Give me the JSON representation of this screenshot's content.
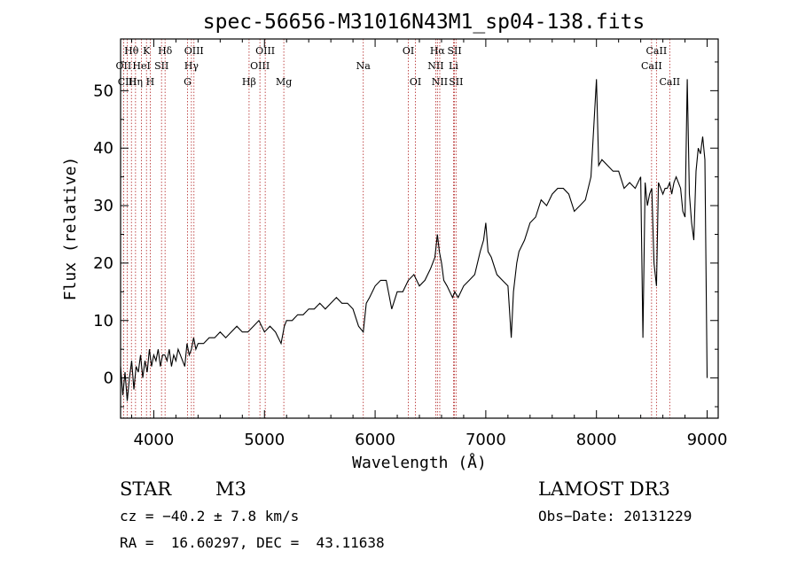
{
  "chart_data": {
    "type": "line",
    "title": "spec-56656-M31016N43M1_sp04-138.fits",
    "xlabel": "Wavelength (Å)",
    "ylabel": "Flux (relative)",
    "xlim": [
      3700,
      9100
    ],
    "ylim": [
      -7,
      59
    ],
    "xticks": [
      4000,
      5000,
      6000,
      7000,
      8000,
      9000
    ],
    "yticks": [
      0,
      10,
      20,
      30,
      40,
      50
    ],
    "grid": false,
    "line_color": "#000000",
    "marker_color": "#b22222",
    "series": [
      {
        "values_x": [
          3700,
          3720,
          3740,
          3760,
          3780,
          3800,
          3820,
          3840,
          3860,
          3880,
          3900,
          3920,
          3940,
          3960,
          3980,
          4000,
          4020,
          4040,
          4060,
          4080,
          4100,
          4120,
          4140,
          4160,
          4180,
          4200,
          4220,
          4240,
          4260,
          4280,
          4300,
          4320,
          4340,
          4360,
          4380,
          4400,
          4450,
          4500,
          4550,
          4600,
          4650,
          4700,
          4750,
          4800,
          4850,
          4900,
          4950,
          5000,
          5050,
          5100,
          5150,
          5180,
          5200,
          5250,
          5300,
          5350,
          5400,
          5450,
          5500,
          5550,
          5600,
          5650,
          5700,
          5750,
          5800,
          5850,
          5893,
          5920,
          5950,
          6000,
          6050,
          6100,
          6150,
          6200,
          6250,
          6300,
          6350,
          6400,
          6450,
          6500,
          6540,
          6563,
          6580,
          6600,
          6620,
          6650,
          6700,
          6720,
          6750,
          6800,
          6850,
          6900,
          6950,
          6980,
          7000,
          7020,
          7050,
          7100,
          7150,
          7200,
          7230,
          7250,
          7280,
          7300,
          7350,
          7400,
          7450,
          7500,
          7550,
          7600,
          7650,
          7700,
          7750,
          7800,
          7850,
          7900,
          7950,
          8000,
          8020,
          8050,
          8100,
          8150,
          8200,
          8250,
          8300,
          8350,
          8400,
          8420,
          8440,
          8460,
          8480,
          8500,
          8520,
          8542,
          8560,
          8580,
          8600,
          8620,
          8640,
          8662,
          8680,
          8700,
          8720,
          8740,
          8760,
          8780,
          8800,
          8820,
          8840,
          8860,
          8880,
          8900,
          8920,
          8940,
          8960,
          8980,
          9000
        ],
        "values_y": [
          2,
          -3,
          1,
          -4,
          0,
          3,
          -2,
          2,
          1,
          4,
          0,
          3,
          1,
          5,
          2,
          4,
          3,
          5,
          2,
          4,
          4,
          3,
          5,
          2,
          4,
          3,
          5,
          4,
          3,
          2,
          6,
          4,
          5,
          7,
          5,
          6,
          6,
          7,
          7,
          8,
          7,
          8,
          9,
          8,
          8,
          9,
          10,
          8,
          9,
          8,
          6,
          9,
          10,
          10,
          11,
          11,
          12,
          12,
          13,
          12,
          13,
          14,
          13,
          13,
          12,
          9,
          8,
          13,
          14,
          16,
          17,
          17,
          12,
          15,
          15,
          17,
          18,
          16,
          17,
          19,
          21,
          25,
          22,
          20,
          17,
          16,
          14,
          15,
          14,
          16,
          17,
          18,
          22,
          24,
          27,
          22,
          21,
          18,
          17,
          16,
          7,
          15,
          20,
          22,
          24,
          27,
          28,
          31,
          30,
          32,
          33,
          33,
          32,
          29,
          30,
          31,
          35,
          52,
          37,
          38,
          37,
          36,
          36,
          33,
          34,
          33,
          35,
          7,
          34,
          30,
          32,
          33,
          20,
          16,
          34,
          33,
          32,
          33,
          33,
          34,
          32,
          34,
          35,
          34,
          33,
          29,
          28,
          52,
          32,
          27,
          24,
          36,
          40,
          39,
          42,
          38,
          0
        ],
        "markers": [
          {
            "type": "CaII K",
            "x": 3934
          },
          {
            "type": "CaII H",
            "x": 3968
          },
          {
            "type": "Hdelta",
            "x": 4102
          },
          {
            "type": "Hgamma",
            "x": 4340
          },
          {
            "type": "Hbeta",
            "x": 4861
          },
          {
            "type": "Halpha",
            "x": 6563
          },
          {
            "type": "CaII triplet",
            "x": 8498
          },
          {
            "type": "CaII triplet",
            "x": 8542
          },
          {
            "type": "CaII triplet",
            "x": 8662
          }
        ]
      }
    ],
    "lines": [
      {
        "label": "OII",
        "x": 3727,
        "row": 1
      },
      {
        "label": "Hθ",
        "x": 3798,
        "row": 0
      },
      {
        "label": "CIII",
        "x": 3760,
        "row": 2
      },
      {
        "label": "Hη",
        "x": 3835,
        "row": 2
      },
      {
        "label": "HeI",
        "x": 3889,
        "row": 1
      },
      {
        "label": "K",
        "x": 3934,
        "row": 0
      },
      {
        "label": "H",
        "x": 3968,
        "row": 2
      },
      {
        "label": "SII",
        "x": 4070,
        "row": 1
      },
      {
        "label": "Hδ",
        "x": 4102,
        "row": 0
      },
      {
        "label": "G",
        "x": 4305,
        "row": 2
      },
      {
        "label": "OIII",
        "x": 4363,
        "row": 0
      },
      {
        "label": "Hγ",
        "x": 4340,
        "row": 1
      },
      {
        "label": "Hβ",
        "x": 4861,
        "row": 2
      },
      {
        "label": "OIII",
        "x": 4959,
        "row": 1
      },
      {
        "label": "OIII",
        "x": 5007,
        "row": 0
      },
      {
        "label": "Mg",
        "x": 5175,
        "row": 2
      },
      {
        "label": "Na",
        "x": 5893,
        "row": 1
      },
      {
        "label": "OI",
        "x": 6300,
        "row": 0
      },
      {
        "label": "OI",
        "x": 6364,
        "row": 2
      },
      {
        "label": "Hα",
        "x": 6563,
        "row": 0
      },
      {
        "label": "NII",
        "x": 6548,
        "row": 1
      },
      {
        "label": "NII",
        "x": 6584,
        "row": 2
      },
      {
        "label": "Li",
        "x": 6708,
        "row": 1
      },
      {
        "label": "SII",
        "x": 6717,
        "row": 0
      },
      {
        "label": "SII",
        "x": 6731,
        "row": 2
      },
      {
        "label": "CaII",
        "x": 8498,
        "row": 1
      },
      {
        "label": "CaII",
        "x": 8542,
        "row": 0
      },
      {
        "label": "CaII",
        "x": 8662,
        "row": 2
      }
    ]
  },
  "info": {
    "class": "STAR",
    "subclass": "M3",
    "survey": "LAMOST DR3",
    "cz": "cz = −40.2 ± 7.8 km/s",
    "obs_date": "Obs−Date: 20131229",
    "radec": "RA =  16.60297, DEC =  43.11638"
  }
}
